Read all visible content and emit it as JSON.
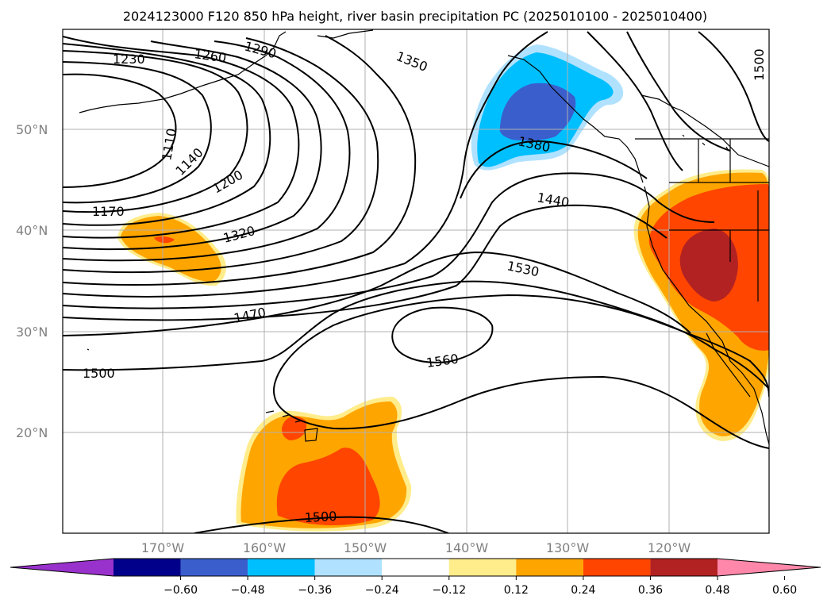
{
  "title": "2024123000 F120 850 hPa height, river basin precipitation PC (2025010100 - 2025010400)",
  "lat_labels": [
    "50°N",
    "40°N",
    "30°N",
    "20°N"
  ],
  "lon_labels": [
    "170°W",
    "160°W",
    "150°W",
    "140°W",
    "130°W",
    "120°W"
  ],
  "contour_labels": [
    "1230",
    "1260",
    "1290",
    "1350",
    "1110",
    "1140",
    "1200",
    "1170",
    "1320",
    "1380",
    "1440",
    "1530",
    "1470",
    "1500",
    "1560",
    "1500",
    "1500"
  ],
  "colorbar": {
    "ticks": [
      "−0.60",
      "−0.48",
      "−0.36",
      "−0.24",
      "−0.12",
      "0.12",
      "0.24",
      "0.36",
      "0.48",
      "0.60"
    ],
    "colors": [
      "#9932cc",
      "#00008b",
      "#3a5fcd",
      "#00bfff",
      "#b0e2ff",
      "#ffffff",
      "#ffec8b",
      "#ffa500",
      "#ff4500",
      "#b22222",
      "#ff88aa"
    ]
  },
  "colors": {
    "contour": "#000000",
    "grid": "#b0b0b0",
    "axis_label": "#808080"
  }
}
